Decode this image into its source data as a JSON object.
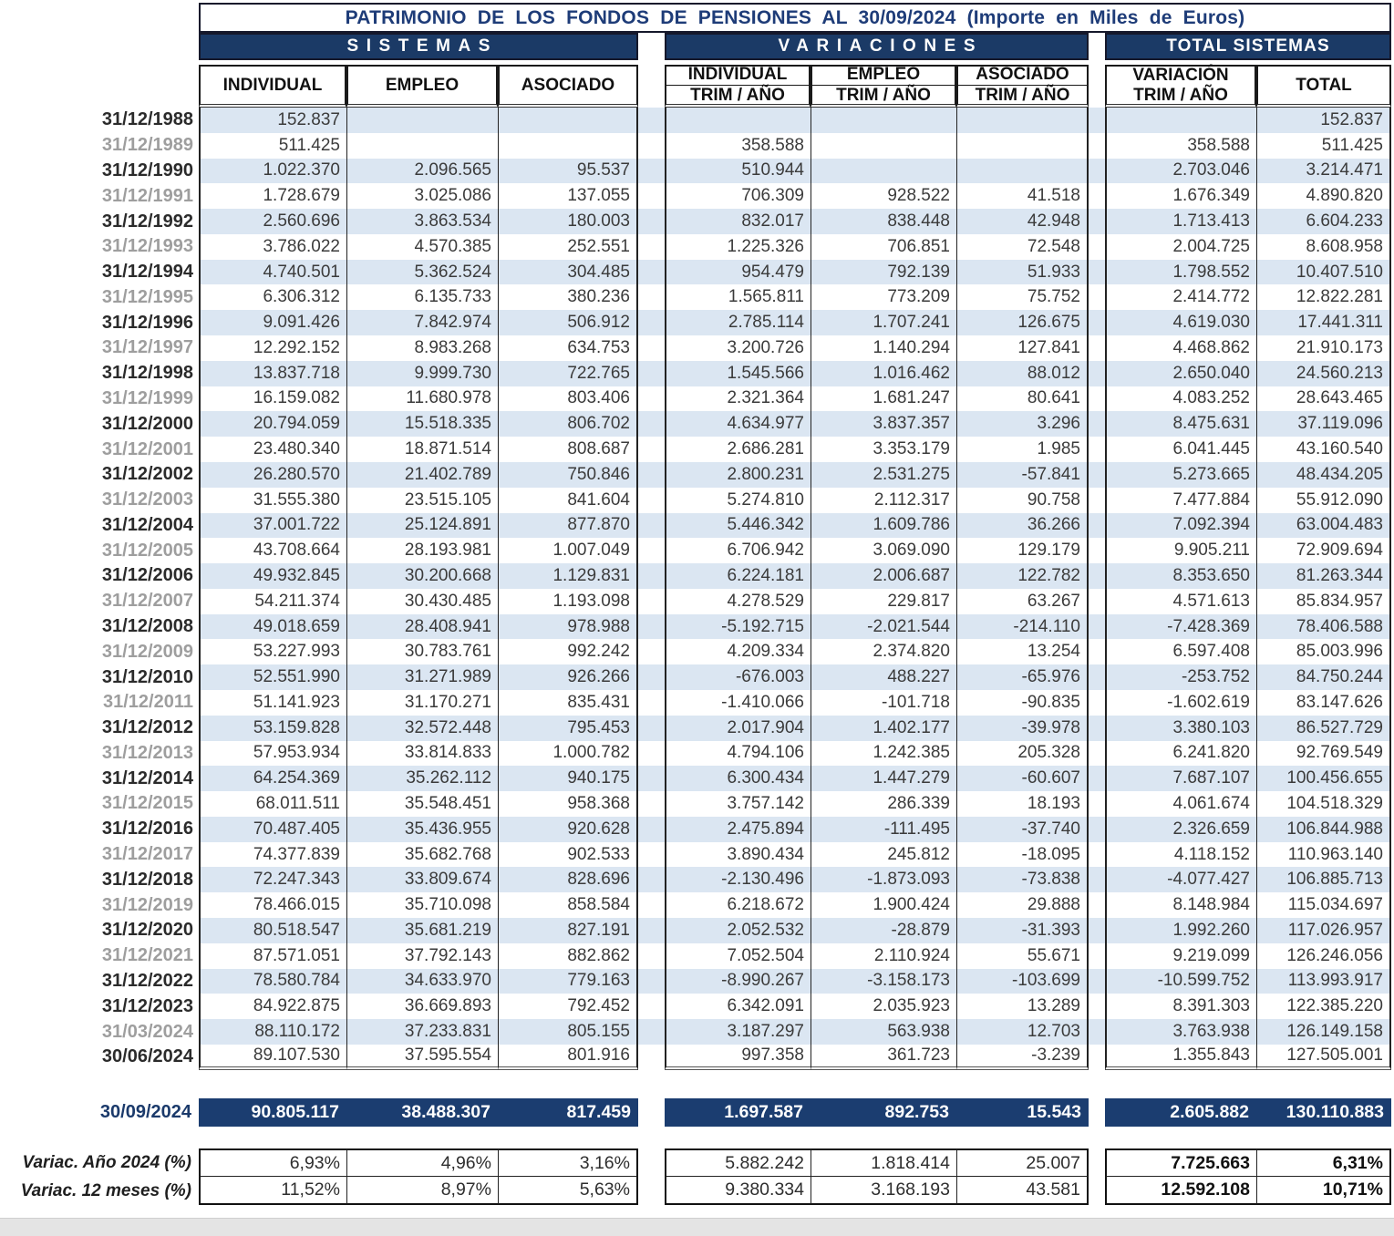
{
  "title": "PATRIMONIO DE LOS FONDOS DE PENSIONES AL 30/09/2024 (Importe en Miles de Euros)",
  "groups": [
    "SISTEMAS",
    "VARIACIONES",
    "TOTAL SISTEMAS"
  ],
  "columns": {
    "sistemas": [
      "INDIVIDUAL",
      "EMPLEO",
      "ASOCIADO"
    ],
    "variaciones": [
      {
        "top": "INDIVIDUAL",
        "bottom": "TRIM / AÑO"
      },
      {
        "top": "EMPLEO",
        "bottom": "TRIM / AÑO"
      },
      {
        "top": "ASOCIADO",
        "bottom": "TRIM / AÑO"
      }
    ],
    "total": {
      "variacion_line1": "VARIACIÓN",
      "variacion_line2": "TRIM / AÑO",
      "total": "TOTAL"
    }
  },
  "colors": {
    "navy_band": "#1b3a66",
    "navy_row": "#1b3d70",
    "stripe": "#dbe6f2",
    "title_text": "#1e3c78",
    "gray_date": "#9e9e9e"
  },
  "rows": [
    {
      "date": "31/12/1988",
      "gray": false,
      "values": [
        "152.837",
        "",
        "",
        "",
        "",
        "",
        "",
        "152.837"
      ]
    },
    {
      "date": "31/12/1989",
      "gray": true,
      "values": [
        "511.425",
        "",
        "",
        "358.588",
        "",
        "",
        "358.588",
        "511.425"
      ]
    },
    {
      "date": "31/12/1990",
      "gray": false,
      "values": [
        "1.022.370",
        "2.096.565",
        "95.537",
        "510.944",
        "",
        "",
        "2.703.046",
        "3.214.471"
      ]
    },
    {
      "date": "31/12/1991",
      "gray": true,
      "values": [
        "1.728.679",
        "3.025.086",
        "137.055",
        "706.309",
        "928.522",
        "41.518",
        "1.676.349",
        "4.890.820"
      ]
    },
    {
      "date": "31/12/1992",
      "gray": false,
      "values": [
        "2.560.696",
        "3.863.534",
        "180.003",
        "832.017",
        "838.448",
        "42.948",
        "1.713.413",
        "6.604.233"
      ]
    },
    {
      "date": "31/12/1993",
      "gray": true,
      "values": [
        "3.786.022",
        "4.570.385",
        "252.551",
        "1.225.326",
        "706.851",
        "72.548",
        "2.004.725",
        "8.608.958"
      ]
    },
    {
      "date": "31/12/1994",
      "gray": false,
      "values": [
        "4.740.501",
        "5.362.524",
        "304.485",
        "954.479",
        "792.139",
        "51.933",
        "1.798.552",
        "10.407.510"
      ]
    },
    {
      "date": "31/12/1995",
      "gray": true,
      "values": [
        "6.306.312",
        "6.135.733",
        "380.236",
        "1.565.811",
        "773.209",
        "75.752",
        "2.414.772",
        "12.822.281"
      ]
    },
    {
      "date": "31/12/1996",
      "gray": false,
      "values": [
        "9.091.426",
        "7.842.974",
        "506.912",
        "2.785.114",
        "1.707.241",
        "126.675",
        "4.619.030",
        "17.441.311"
      ]
    },
    {
      "date": "31/12/1997",
      "gray": true,
      "values": [
        "12.292.152",
        "8.983.268",
        "634.753",
        "3.200.726",
        "1.140.294",
        "127.841",
        "4.468.862",
        "21.910.173"
      ]
    },
    {
      "date": "31/12/1998",
      "gray": false,
      "values": [
        "13.837.718",
        "9.999.730",
        "722.765",
        "1.545.566",
        "1.016.462",
        "88.012",
        "2.650.040",
        "24.560.213"
      ]
    },
    {
      "date": "31/12/1999",
      "gray": true,
      "values": [
        "16.159.082",
        "11.680.978",
        "803.406",
        "2.321.364",
        "1.681.247",
        "80.641",
        "4.083.252",
        "28.643.465"
      ]
    },
    {
      "date": "31/12/2000",
      "gray": false,
      "values": [
        "20.794.059",
        "15.518.335",
        "806.702",
        "4.634.977",
        "3.837.357",
        "3.296",
        "8.475.631",
        "37.119.096"
      ]
    },
    {
      "date": "31/12/2001",
      "gray": true,
      "values": [
        "23.480.340",
        "18.871.514",
        "808.687",
        "2.686.281",
        "3.353.179",
        "1.985",
        "6.041.445",
        "43.160.540"
      ]
    },
    {
      "date": "31/12/2002",
      "gray": false,
      "values": [
        "26.280.570",
        "21.402.789",
        "750.846",
        "2.800.231",
        "2.531.275",
        "-57.841",
        "5.273.665",
        "48.434.205"
      ]
    },
    {
      "date": "31/12/2003",
      "gray": true,
      "values": [
        "31.555.380",
        "23.515.105",
        "841.604",
        "5.274.810",
        "2.112.317",
        "90.758",
        "7.477.884",
        "55.912.090"
      ]
    },
    {
      "date": "31/12/2004",
      "gray": false,
      "values": [
        "37.001.722",
        "25.124.891",
        "877.870",
        "5.446.342",
        "1.609.786",
        "36.266",
        "7.092.394",
        "63.004.483"
      ]
    },
    {
      "date": "31/12/2005",
      "gray": true,
      "values": [
        "43.708.664",
        "28.193.981",
        "1.007.049",
        "6.706.942",
        "3.069.090",
        "129.179",
        "9.905.211",
        "72.909.694"
      ]
    },
    {
      "date": "31/12/2006",
      "gray": false,
      "values": [
        "49.932.845",
        "30.200.668",
        "1.129.831",
        "6.224.181",
        "2.006.687",
        "122.782",
        "8.353.650",
        "81.263.344"
      ]
    },
    {
      "date": "31/12/2007",
      "gray": true,
      "values": [
        "54.211.374",
        "30.430.485",
        "1.193.098",
        "4.278.529",
        "229.817",
        "63.267",
        "4.571.613",
        "85.834.957"
      ]
    },
    {
      "date": "31/12/2008",
      "gray": false,
      "values": [
        "49.018.659",
        "28.408.941",
        "978.988",
        "-5.192.715",
        "-2.021.544",
        "-214.110",
        "-7.428.369",
        "78.406.588"
      ]
    },
    {
      "date": "31/12/2009",
      "gray": true,
      "values": [
        "53.227.993",
        "30.783.761",
        "992.242",
        "4.209.334",
        "2.374.820",
        "13.254",
        "6.597.408",
        "85.003.996"
      ]
    },
    {
      "date": "31/12/2010",
      "gray": false,
      "values": [
        "52.551.990",
        "31.271.989",
        "926.266",
        "-676.003",
        "488.227",
        "-65.976",
        "-253.752",
        "84.750.244"
      ]
    },
    {
      "date": "31/12/2011",
      "gray": true,
      "values": [
        "51.141.923",
        "31.170.271",
        "835.431",
        "-1.410.066",
        "-101.718",
        "-90.835",
        "-1.602.619",
        "83.147.626"
      ]
    },
    {
      "date": "31/12/2012",
      "gray": false,
      "values": [
        "53.159.828",
        "32.572.448",
        "795.453",
        "2.017.904",
        "1.402.177",
        "-39.978",
        "3.380.103",
        "86.527.729"
      ]
    },
    {
      "date": "31/12/2013",
      "gray": true,
      "values": [
        "57.953.934",
        "33.814.833",
        "1.000.782",
        "4.794.106",
        "1.242.385",
        "205.328",
        "6.241.820",
        "92.769.549"
      ]
    },
    {
      "date": "31/12/2014",
      "gray": false,
      "values": [
        "64.254.369",
        "35.262.112",
        "940.175",
        "6.300.434",
        "1.447.279",
        "-60.607",
        "7.687.107",
        "100.456.655"
      ]
    },
    {
      "date": "31/12/2015",
      "gray": true,
      "values": [
        "68.011.511",
        "35.548.451",
        "958.368",
        "3.757.142",
        "286.339",
        "18.193",
        "4.061.674",
        "104.518.329"
      ]
    },
    {
      "date": "31/12/2016",
      "gray": false,
      "values": [
        "70.487.405",
        "35.436.955",
        "920.628",
        "2.475.894",
        "-111.495",
        "-37.740",
        "2.326.659",
        "106.844.988"
      ]
    },
    {
      "date": "31/12/2017",
      "gray": true,
      "values": [
        "74.377.839",
        "35.682.768",
        "902.533",
        "3.890.434",
        "245.812",
        "-18.095",
        "4.118.152",
        "110.963.140"
      ]
    },
    {
      "date": "31/12/2018",
      "gray": false,
      "values": [
        "72.247.343",
        "33.809.674",
        "828.696",
        "-2.130.496",
        "-1.873.093",
        "-73.838",
        "-4.077.427",
        "106.885.713"
      ]
    },
    {
      "date": "31/12/2019",
      "gray": true,
      "values": [
        "78.466.015",
        "35.710.098",
        "858.584",
        "6.218.672",
        "1.900.424",
        "29.888",
        "8.148.984",
        "115.034.697"
      ]
    },
    {
      "date": "31/12/2020",
      "gray": false,
      "values": [
        "80.518.547",
        "35.681.219",
        "827.191",
        "2.052.532",
        "-28.879",
        "-31.393",
        "1.992.260",
        "117.026.957"
      ]
    },
    {
      "date": "31/12/2021",
      "gray": true,
      "values": [
        "87.571.051",
        "37.792.143",
        "882.862",
        "7.052.504",
        "2.110.924",
        "55.671",
        "9.219.099",
        "126.246.056"
      ]
    },
    {
      "date": "31/12/2022",
      "gray": false,
      "values": [
        "78.580.784",
        "34.633.970",
        "779.163",
        "-8.990.267",
        "-3.158.173",
        "-103.699",
        "-10.599.752",
        "113.993.917"
      ]
    },
    {
      "date": "31/12/2023",
      "gray": false,
      "values": [
        "84.922.875",
        "36.669.893",
        "792.452",
        "6.342.091",
        "2.035.923",
        "13.289",
        "8.391.303",
        "122.385.220"
      ]
    },
    {
      "date": "31/03/2024",
      "gray": true,
      "values": [
        "88.110.172",
        "37.233.831",
        "805.155",
        "3.187.297",
        "563.938",
        "12.703",
        "3.763.938",
        "126.149.158"
      ]
    },
    {
      "date": "30/06/2024",
      "gray": false,
      "values": [
        "89.107.530",
        "37.595.554",
        "801.916",
        "997.358",
        "361.723",
        "-3.239",
        "1.355.843",
        "127.505.001"
      ]
    }
  ],
  "highlight_row": {
    "date": "30/09/2024",
    "values": [
      "90.805.117",
      "38.488.307",
      "817.459",
      "1.697.587",
      "892.753",
      "15.543",
      "2.605.882",
      "130.110.883"
    ]
  },
  "footer_rows": [
    {
      "label": "Variac. Año 2024 (%)",
      "values": [
        "6,93%",
        "4,96%",
        "3,16%",
        "5.882.242",
        "1.818.414",
        "25.007",
        "7.725.663",
        "6,31%"
      ]
    },
    {
      "label": "Variac. 12 meses (%)",
      "values": [
        "11,52%",
        "8,97%",
        "5,63%",
        "9.380.334",
        "3.168.193",
        "43.581",
        "12.592.108",
        "10,71%"
      ]
    }
  ]
}
